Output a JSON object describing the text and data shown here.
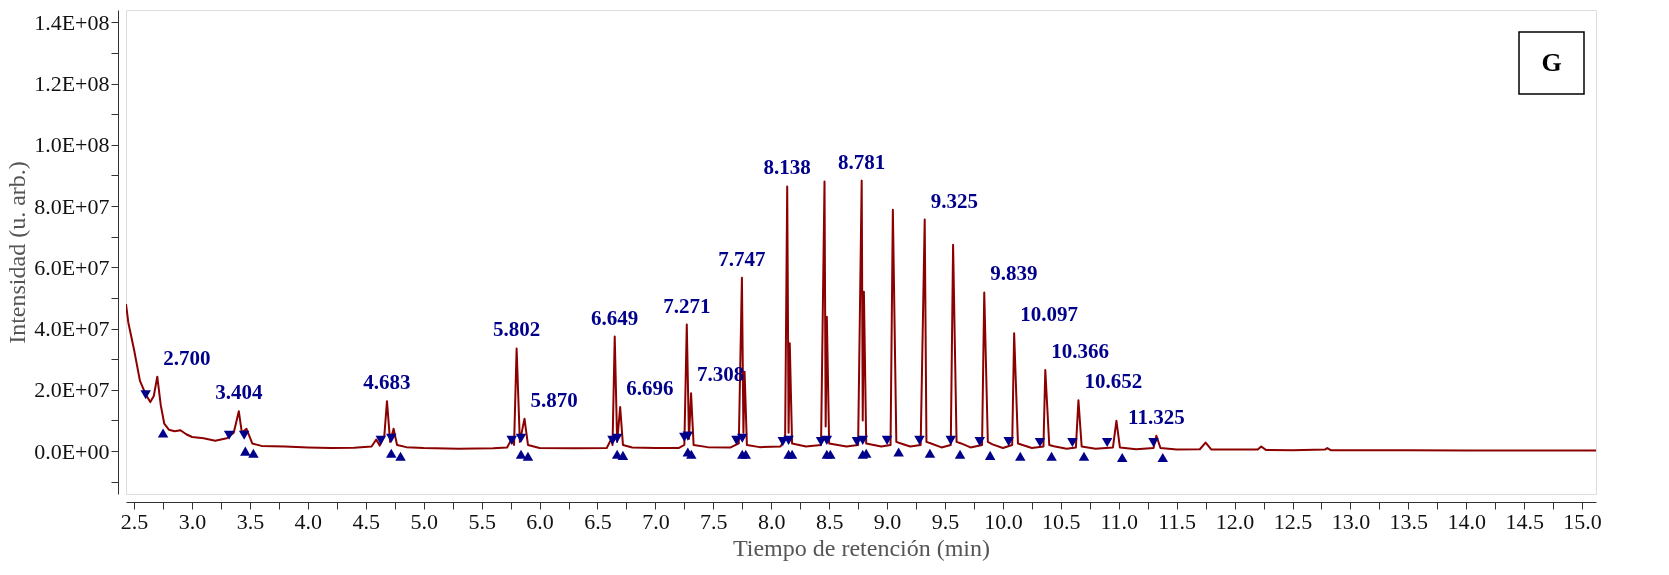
{
  "chart_data": {
    "type": "line",
    "xlabel": "Tiempo de retención (min)",
    "ylabel": "Intensidad (u. arb.)",
    "xlim": [
      2.43,
      15.12
    ],
    "ylim": [
      -14000000.0,
      144000000.0
    ],
    "xticks": [
      {
        "value": 2.5,
        "label": "2.5"
      },
      {
        "value": 2.75,
        "label": null
      },
      {
        "value": 3.0,
        "label": "3.0"
      },
      {
        "value": 3.25,
        "label": null
      },
      {
        "value": 3.5,
        "label": "3.5"
      },
      {
        "value": 3.75,
        "label": null
      },
      {
        "value": 4.0,
        "label": "4.0"
      },
      {
        "value": 4.25,
        "label": null
      },
      {
        "value": 4.5,
        "label": "4.5"
      },
      {
        "value": 4.75,
        "label": null
      },
      {
        "value": 5.0,
        "label": "5.0"
      },
      {
        "value": 5.25,
        "label": null
      },
      {
        "value": 5.5,
        "label": "5.5"
      },
      {
        "value": 5.75,
        "label": null
      },
      {
        "value": 6.0,
        "label": "6.0"
      },
      {
        "value": 6.25,
        "label": null
      },
      {
        "value": 6.5,
        "label": "6.5"
      },
      {
        "value": 6.75,
        "label": null
      },
      {
        "value": 7.0,
        "label": "7.0"
      },
      {
        "value": 7.25,
        "label": null
      },
      {
        "value": 7.5,
        "label": "7.5"
      },
      {
        "value": 7.75,
        "label": null
      },
      {
        "value": 8.0,
        "label": "8.0"
      },
      {
        "value": 8.25,
        "label": null
      },
      {
        "value": 8.5,
        "label": "8.5"
      },
      {
        "value": 8.75,
        "label": null
      },
      {
        "value": 9.0,
        "label": "9.0"
      },
      {
        "value": 9.25,
        "label": null
      },
      {
        "value": 9.5,
        "label": "9.5"
      },
      {
        "value": 9.75,
        "label": null
      },
      {
        "value": 10.0,
        "label": "10.0"
      },
      {
        "value": 10.25,
        "label": null
      },
      {
        "value": 10.5,
        "label": "10.5"
      },
      {
        "value": 10.75,
        "label": null
      },
      {
        "value": 11.0,
        "label": "11.0"
      },
      {
        "value": 11.25,
        "label": null
      },
      {
        "value": 11.5,
        "label": "11.5"
      },
      {
        "value": 11.75,
        "label": null
      },
      {
        "value": 12.0,
        "label": "12.0"
      },
      {
        "value": 12.25,
        "label": null
      },
      {
        "value": 12.5,
        "label": "12.5"
      },
      {
        "value": 12.75,
        "label": null
      },
      {
        "value": 13.0,
        "label": "13.0"
      },
      {
        "value": 13.25,
        "label": null
      },
      {
        "value": 13.5,
        "label": "13.5"
      },
      {
        "value": 13.75,
        "label": null
      },
      {
        "value": 14.0,
        "label": "14.0"
      },
      {
        "value": 14.25,
        "label": null
      },
      {
        "value": 14.5,
        "label": "14.5"
      },
      {
        "value": 14.75,
        "label": null
      },
      {
        "value": 15.0,
        "label": "15.0"
      }
    ],
    "yticks": [
      {
        "value": -10000000.0,
        "label": null
      },
      {
        "value": 0,
        "label": "0.0E+00"
      },
      {
        "value": 10000000.0,
        "label": null
      },
      {
        "value": 20000000.0,
        "label": "2.0E+07"
      },
      {
        "value": 30000000.0,
        "label": null
      },
      {
        "value": 40000000.0,
        "label": "4.0E+07"
      },
      {
        "value": 50000000.0,
        "label": null
      },
      {
        "value": 60000000.0,
        "label": "6.0E+07"
      },
      {
        "value": 70000000.0,
        "label": null
      },
      {
        "value": 80000000.0,
        "label": "8.0E+07"
      },
      {
        "value": 90000000.0,
        "label": null
      },
      {
        "value": 100000000.0,
        "label": "1.0E+08"
      },
      {
        "value": 110000000.0,
        "label": null
      },
      {
        "value": 120000000.0,
        "label": "1.2E+08"
      },
      {
        "value": 130000000.0,
        "label": null
      },
      {
        "value": 140000000.0,
        "label": "1.4E+08"
      }
    ],
    "grid": false,
    "series": [
      {
        "color": "#8b0000",
        "marker": "none",
        "line_style": "solid",
        "x": [
          2.43,
          2.45,
          2.5,
          2.55,
          2.6,
          2.64,
          2.67,
          2.7,
          2.73,
          2.76,
          2.8,
          2.85,
          2.9,
          2.95,
          3.0,
          3.1,
          3.2,
          3.3,
          3.36,
          3.404,
          3.43,
          3.47,
          3.52,
          3.6,
          3.8,
          4.0,
          4.2,
          4.4,
          4.55,
          4.59,
          4.62,
          4.66,
          4.683,
          4.71,
          4.74,
          4.77,
          4.85,
          5.0,
          5.3,
          5.6,
          5.72,
          5.76,
          5.78,
          5.802,
          5.83,
          5.87,
          5.9,
          6.0,
          6.3,
          6.58,
          6.62,
          6.63,
          6.649,
          6.67,
          6.696,
          6.72,
          6.8,
          7.0,
          7.2,
          7.25,
          7.271,
          7.29,
          7.308,
          7.33,
          7.45,
          7.65,
          7.72,
          7.747,
          7.76,
          7.77,
          7.79,
          7.9,
          8.08,
          8.12,
          8.138,
          8.15,
          8.16,
          8.18,
          8.3,
          8.43,
          8.46,
          8.47,
          8.48,
          8.5,
          8.65,
          8.75,
          8.781,
          8.79,
          8.8,
          8.82,
          8.95,
          9.03,
          9.05,
          9.08,
          9.12,
          9.2,
          9.29,
          9.325,
          9.34,
          9.38,
          9.47,
          9.55,
          9.57,
          9.6,
          9.64,
          9.72,
          9.82,
          9.839,
          9.87,
          9.91,
          10.0,
          10.08,
          10.097,
          10.13,
          10.17,
          10.25,
          10.35,
          10.366,
          10.4,
          10.44,
          10.55,
          10.63,
          10.652,
          10.68,
          10.8,
          10.95,
          10.98,
          11.01,
          11.15,
          11.3,
          11.325,
          11.36,
          11.5,
          11.7,
          11.75,
          11.8,
          12.0,
          12.2,
          12.23,
          12.27,
          12.5,
          12.78,
          12.8,
          12.83,
          13.5,
          14.0,
          14.5,
          15.12
        ],
        "values": [
          48000000.0,
          42000000.0,
          33000000.0,
          23000000.0,
          18500000.0,
          16000000.0,
          18000000.0,
          24300000.0,
          15000000.0,
          9000000.0,
          7000000.0,
          6500000.0,
          6800000.0,
          5500000.0,
          4600000.0,
          4200000.0,
          3400000.0,
          4200000.0,
          6000000.0,
          13000000.0,
          6000000.0,
          7300000.0,
          2500000.0,
          1700000.0,
          1500000.0,
          1200000.0,
          1000000.0,
          1100000.0,
          1500000.0,
          3800000.0,
          1800000.0,
          5000000.0,
          16300000.0,
          3000000.0,
          7300000.0,
          2000000.0,
          1300000.0,
          1000000.0,
          800000.0,
          900000.0,
          1200000.0,
          4000000.0,
          2000000.0,
          33500000.0,
          3000000.0,
          10600000.0,
          2000000.0,
          1000000.0,
          900000.0,
          1000000.0,
          4000000.0,
          2000000.0,
          37400000.0,
          3000000.0,
          14400000.0,
          2000000.0,
          1200000.0,
          1000000.0,
          1000000.0,
          2000000.0,
          41300000.0,
          4000000.0,
          18900000.0,
          2000000.0,
          1300000.0,
          1200000.0,
          2500000.0,
          56600000.0,
          6000000.0,
          25900000.0,
          2000000.0,
          1300000.0,
          1500000.0,
          4000000.0,
          86400000.0,
          6000000.0,
          35200000.0,
          2500000.0,
          1500000.0,
          2000000.0,
          88000000.0,
          8000000.0,
          43900000.0,
          2500000.0,
          1500000.0,
          2000000.0,
          88300000.0,
          10000000.0,
          52000000.0,
          2500000.0,
          1500000.0,
          2000000.0,
          78800000.0,
          3000000.0,
          2500000.0,
          1500000.0,
          2000000.0,
          75600000.0,
          3000000.0,
          2500000.0,
          1200000.0,
          2000000.0,
          67400000.0,
          3000000.0,
          2500000.0,
          1200000.0,
          2000000.0,
          51800000.0,
          3000000.0,
          2200000.0,
          1000000.0,
          2000000.0,
          38500000.0,
          2500000.0,
          2000000.0,
          1000000.0,
          1500000.0,
          26500000.0,
          2000000.0,
          1600000.0,
          800000.0,
          1200000.0,
          16600000.0,
          1500000.0,
          800000.0,
          1200000.0,
          9900000.0,
          1200000.0,
          600000.0,
          1000000.0,
          5000000.0,
          1000000.0,
          500000.0,
          600000.0,
          2800000.0,
          500000.0,
          500000.0,
          500000.0,
          1500000.0,
          400000.0,
          300000.0,
          500000.0,
          1000000.0,
          300000.0,
          300000.0,
          200000.0,
          200000.0,
          200000.0
        ]
      },
      {
        "type": "scatter",
        "color": "#00008b",
        "marker": "triangle-down",
        "x": [
          2.6,
          3.32,
          3.45,
          4.63,
          4.72,
          5.76,
          5.84,
          6.63,
          6.67,
          7.25,
          7.28,
          7.7,
          7.75,
          8.1,
          8.15,
          8.43,
          8.48,
          8.74,
          8.79,
          9.0,
          9.28,
          9.55,
          9.8,
          10.05,
          10.32,
          10.6,
          10.9,
          11.3
        ],
        "values": [
          18400000.0,
          5200000.0,
          5200000.0,
          3500000.0,
          4200000.0,
          3500000.0,
          4200000.0,
          3500000.0,
          4200000.0,
          4500000.0,
          4900000.0,
          3500000.0,
          4200000.0,
          3100000.0,
          3500000.0,
          3100000.0,
          3500000.0,
          3100000.0,
          3500000.0,
          3500000.0,
          3500000.0,
          3500000.0,
          3100000.0,
          3100000.0,
          2800000.0,
          2800000.0,
          2800000.0,
          2800000.0
        ]
      },
      {
        "type": "scatter",
        "color": "#00008b",
        "marker": "triangle",
        "x": [
          2.75,
          3.46,
          3.53,
          4.72,
          4.8,
          5.84,
          5.9,
          6.67,
          6.72,
          7.28,
          7.31,
          7.75,
          7.78,
          8.15,
          8.18,
          8.48,
          8.51,
          8.79,
          8.82,
          9.1,
          9.37,
          9.63,
          9.89,
          10.15,
          10.42,
          10.7,
          11.03,
          11.38
        ],
        "values": [
          5900000.0,
          0,
          -700000.0,
          -700000.0,
          -1700000.0,
          -1000000.0,
          -1700000.0,
          -1000000.0,
          -1400000.0,
          -300000.0,
          -1000000.0,
          -1000000.0,
          -1000000.0,
          -1000000.0,
          -1000000.0,
          -1000000.0,
          -1000000.0,
          -1000000.0,
          -700000.0,
          -300000.0,
          -700000.0,
          -1000000.0,
          -1400000.0,
          -1700000.0,
          -1700000.0,
          -1700000.0,
          -2100000.0,
          -2100000.0
        ]
      }
    ],
    "annotations": [
      {
        "text": "2.700",
        "x": 2.7,
        "y": 24300000.0
      },
      {
        "text": "3.404",
        "x": 3.404,
        "y": 13000000.0
      },
      {
        "text": "4.683",
        "x": 4.683,
        "y": 16300000.0
      },
      {
        "text": "5.802",
        "x": 5.802,
        "y": 33500000.0
      },
      {
        "text": "5.870",
        "x": 5.87,
        "y": 10600000.0
      },
      {
        "text": "6.649",
        "x": 6.649,
        "y": 37400000.0
      },
      {
        "text": "6.696",
        "x": 6.696,
        "y": 14400000.0
      },
      {
        "text": "7.271",
        "x": 7.271,
        "y": 41300000.0
      },
      {
        "text": "7.308",
        "x": 7.308,
        "y": 18900000.0
      },
      {
        "text": "7.747",
        "x": 7.747,
        "y": 56600000.0
      },
      {
        "text": "8.138",
        "x": 8.138,
        "y": 86400000.0
      },
      {
        "text": "8.781",
        "x": 8.781,
        "y": 88300000.0
      },
      {
        "text": "9.325",
        "x": 9.325,
        "y": 75600000.0
      },
      {
        "text": "9.839",
        "x": 9.839,
        "y": 51800000.0
      },
      {
        "text": "10.097",
        "x": 10.097,
        "y": 38500000.0
      },
      {
        "text": "10.366",
        "x": 10.366,
        "y": 26500000.0
      },
      {
        "text": "10.652",
        "x": 10.652,
        "y": 16600000.0
      },
      {
        "text": "11.325",
        "x": 11.325,
        "y": 5000000.0
      },
      "G"
    ]
  }
}
